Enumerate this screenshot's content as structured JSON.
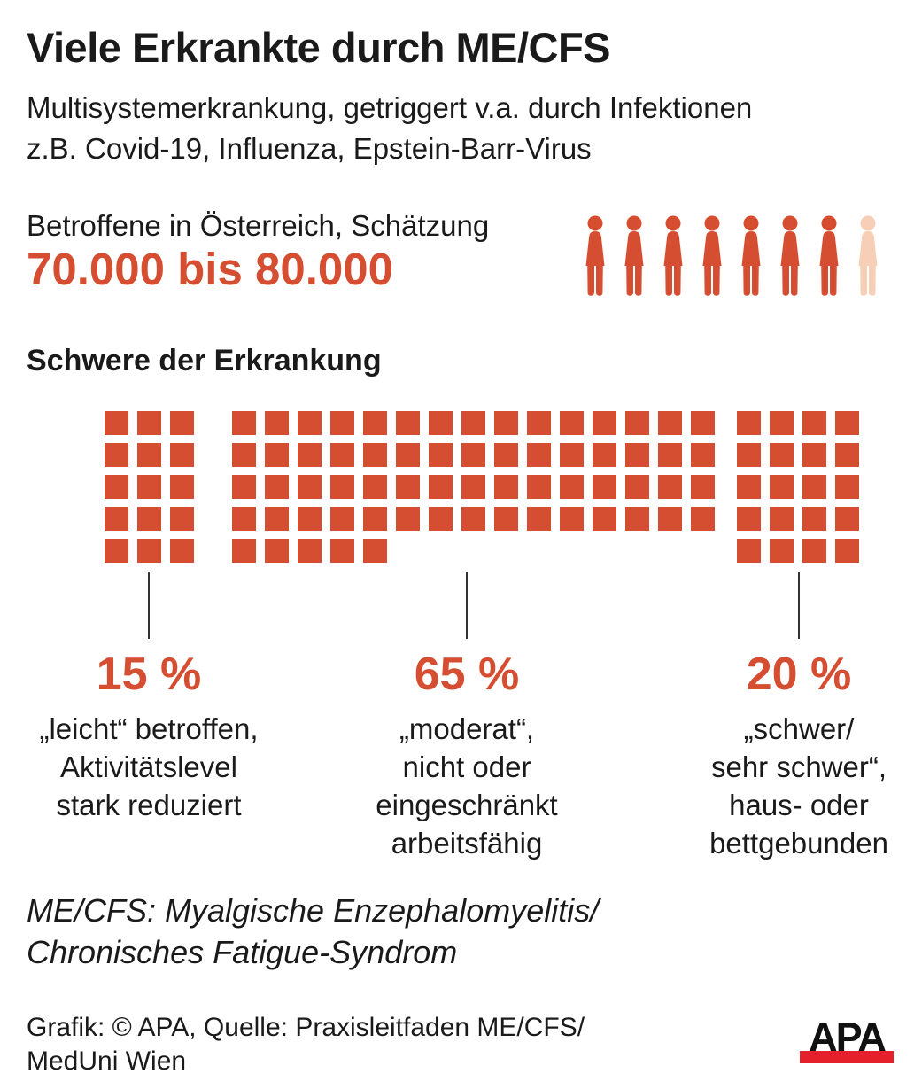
{
  "title": "Viele Erkrankte durch ME/CFS",
  "subtitle_lines": [
    "Multisystemerkrankung, getriggert v.a. durch Infektionen",
    "z.B. Covid-19, Influenza, Epstein-Barr-Virus"
  ],
  "estimate": {
    "label": "Betroffene in Österreich, Schätzung",
    "value": "70.000 bis 80.000",
    "pictogram": {
      "total": 8,
      "highlighted": 7
    }
  },
  "severity": {
    "heading": "Schwere der Erkrankung",
    "rows": 5,
    "groups": [
      {
        "percent_label": "15 %",
        "value": 15,
        "columns": 3,
        "description_lines": [
          "„leicht“ betroffen,",
          "Aktivitätslevel",
          "stark reduziert"
        ]
      },
      {
        "percent_label": "65 %",
        "value": 65,
        "columns": 15,
        "description_lines": [
          "„moderat“,",
          "nicht oder",
          "eingeschränkt",
          "arbeitsfähig"
        ]
      },
      {
        "percent_label": "20 %",
        "value": 20,
        "columns": 4,
        "description_lines": [
          "„schwer/",
          "sehr schwer“,",
          "haus- oder",
          "bettgebunden"
        ]
      }
    ]
  },
  "chart_data": {
    "type": "waffle",
    "title": "Schwere der Erkrankung",
    "categories": [
      "„leicht“ betroffen, Aktivitätslevel stark reduziert",
      "„moderat“, nicht oder eingeschränkt arbeitsfähig",
      "„schwer/sehr schwer“, haus- oder bettgebunden"
    ],
    "values": [
      15,
      65,
      20
    ],
    "unit": "%",
    "total_units": 100,
    "rows_per_group": 5,
    "pictogram_estimate": {
      "label": "Betroffene in Österreich, Schätzung",
      "value": "70.000 bis 80.000",
      "persons_total": 8,
      "persons_filled": 7
    }
  },
  "footnote_lines": [
    "ME/CFS: Myalgische Enzephalomyelitis/",
    "Chronisches Fatigue-Syndrom"
  ],
  "source_lines": [
    "Grafik: © APA, Quelle: Praxisleitfaden ME/CFS/",
    "MedUni Wien"
  ],
  "logo_text": "APA",
  "colors": {
    "accent": "#d54e31",
    "accent_light": "#f6cfb6",
    "text": "#1a1a1a",
    "line": "#333333",
    "logo_red": "#e5202b",
    "background": "#ffffff"
  }
}
